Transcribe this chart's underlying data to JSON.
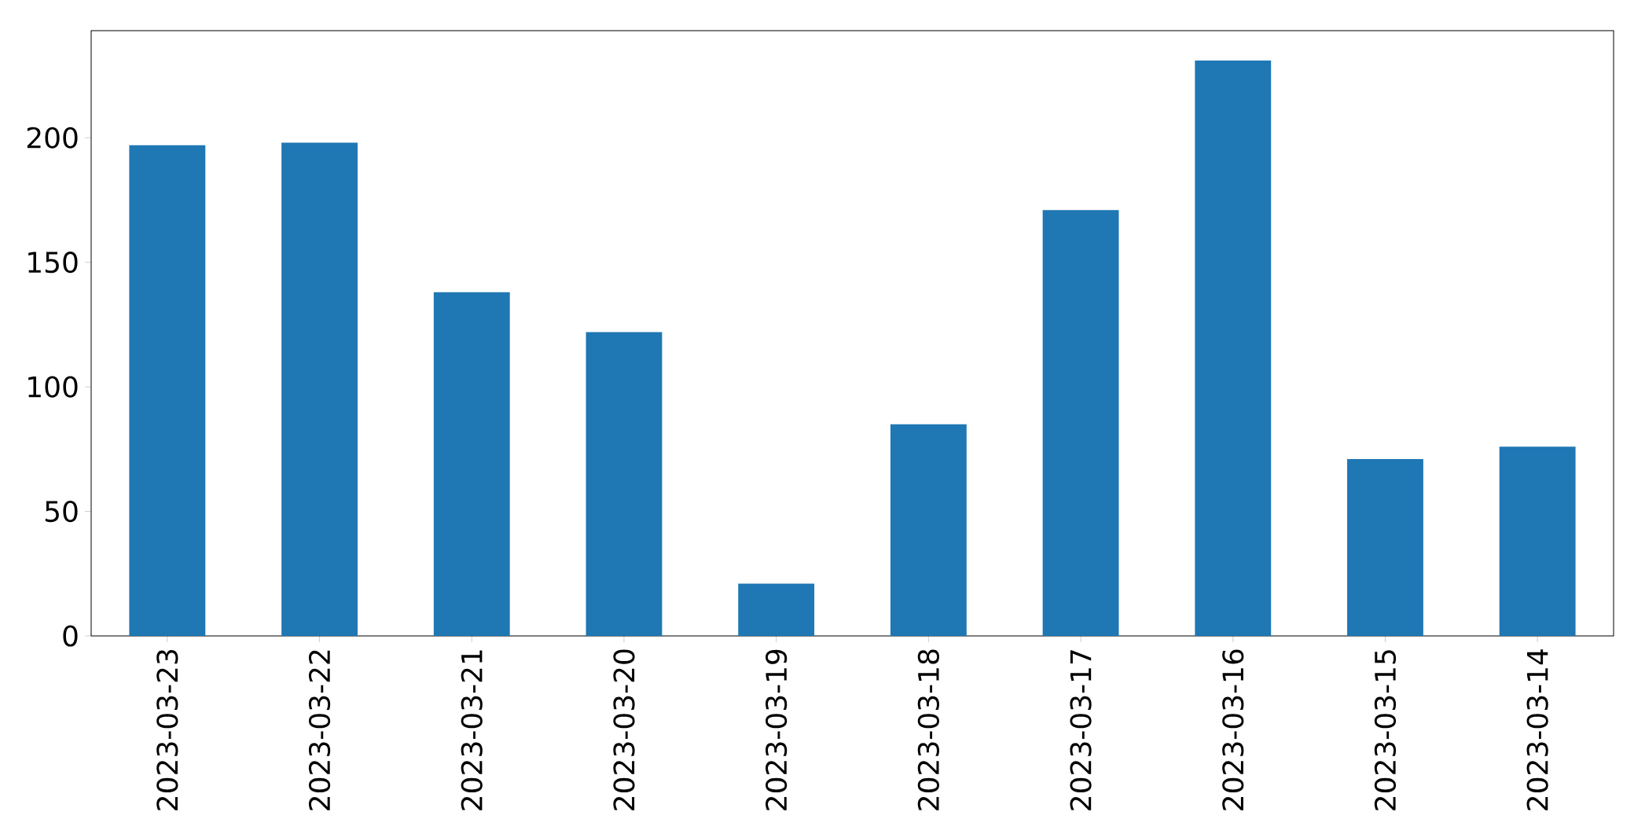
{
  "chart_data": {
    "type": "bar",
    "categories": [
      "2023-03-23",
      "2023-03-22",
      "2023-03-21",
      "2023-03-20",
      "2023-03-19",
      "2023-03-18",
      "2023-03-17",
      "2023-03-16",
      "2023-03-15",
      "2023-03-14"
    ],
    "values": [
      197,
      198,
      138,
      122,
      21,
      85,
      171,
      231,
      71,
      76
    ],
    "color": "#1f77b4",
    "ylim": [
      0,
      243
    ],
    "yticks": [
      0,
      50,
      100,
      150,
      200
    ],
    "grid": false
  }
}
